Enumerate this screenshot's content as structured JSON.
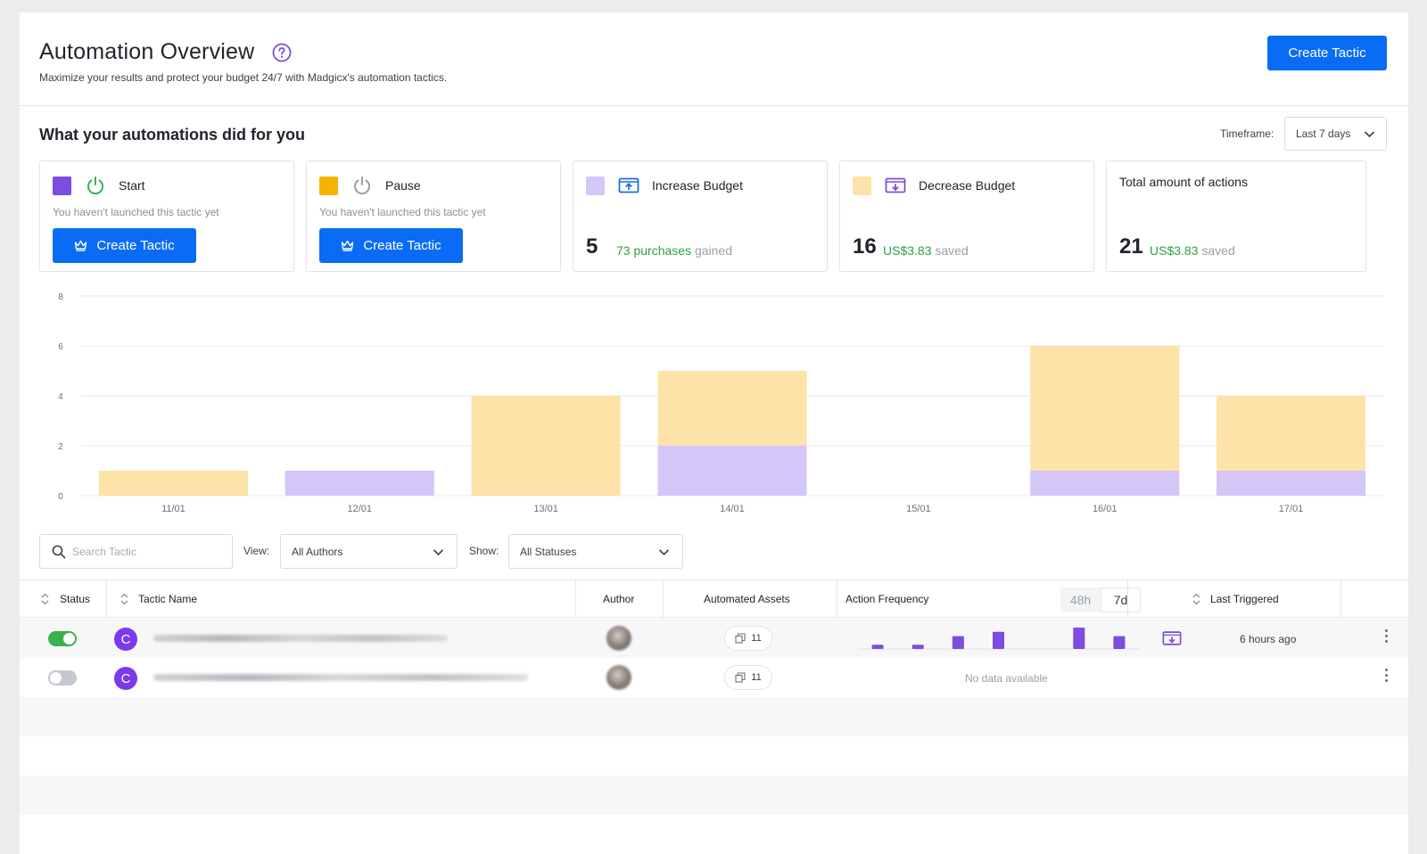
{
  "header": {
    "title": "Automation Overview",
    "subtitle": "Maximize your results and protect your budget 24/7 with Madgicx's automation tactics.",
    "create_button": "Create Tactic"
  },
  "summary": {
    "title": "What your automations did for you",
    "timeframe_label": "Timeframe:",
    "timeframe_value": "Last 7 days"
  },
  "cards": {
    "start": {
      "title": "Start",
      "note": "You haven't launched this tactic yet",
      "button": "Create Tactic",
      "color": "#7c4ddf"
    },
    "pause": {
      "title": "Pause",
      "note": "You haven't launched this tactic yet",
      "button": "Create Tactic",
      "color": "#f5b400"
    },
    "increase": {
      "title": "Increase Budget",
      "count": "5",
      "metric_value": "73 purchases",
      "metric_suffix": "gained",
      "color": "#d4c6f7"
    },
    "decrease": {
      "title": "Decrease Budget",
      "count": "16",
      "metric_value": "US$3.83",
      "metric_suffix": "saved",
      "color": "#fde3a7"
    },
    "total": {
      "title": "Total amount of actions",
      "count": "21",
      "metric_value": "US$3.83",
      "metric_suffix": "saved"
    }
  },
  "chart_data": {
    "type": "bar",
    "stacked": true,
    "categories": [
      "11/01",
      "12/01",
      "13/01",
      "14/01",
      "15/01",
      "16/01",
      "17/01"
    ],
    "series": [
      {
        "name": "Increase Budget",
        "color": "#d4c6f7",
        "values": [
          0,
          1,
          0,
          2,
          0,
          1,
          1
        ]
      },
      {
        "name": "Decrease Budget",
        "color": "#fde3a7",
        "values": [
          1,
          0,
          4,
          3,
          0,
          5,
          3
        ]
      }
    ],
    "yticks": [
      0,
      2,
      4,
      6,
      8
    ],
    "ylim": [
      0,
      8
    ],
    "grid": true
  },
  "filters": {
    "search_placeholder": "Search Tactic",
    "view_label": "View:",
    "view_value": "All Authors",
    "show_label": "Show:",
    "show_value": "All Statuses"
  },
  "table": {
    "columns": {
      "status": "Status",
      "tactic_name": "Tactic Name",
      "author": "Author",
      "assets": "Automated Assets",
      "frequency": "Action Frequency",
      "last_triggered": "Last Triggered"
    },
    "frequency_tabs": [
      "48h",
      "7d"
    ],
    "rows": [
      {
        "enabled": true,
        "avatar_letter": "C",
        "assets": "11",
        "frequency": [
          1,
          1,
          3,
          4,
          0,
          5,
          3
        ],
        "action_icon": "decrease-budget-icon",
        "last_triggered": "6 hours ago"
      },
      {
        "enabled": false,
        "avatar_letter": "C",
        "assets": "11",
        "no_data": "No data available"
      }
    ]
  }
}
